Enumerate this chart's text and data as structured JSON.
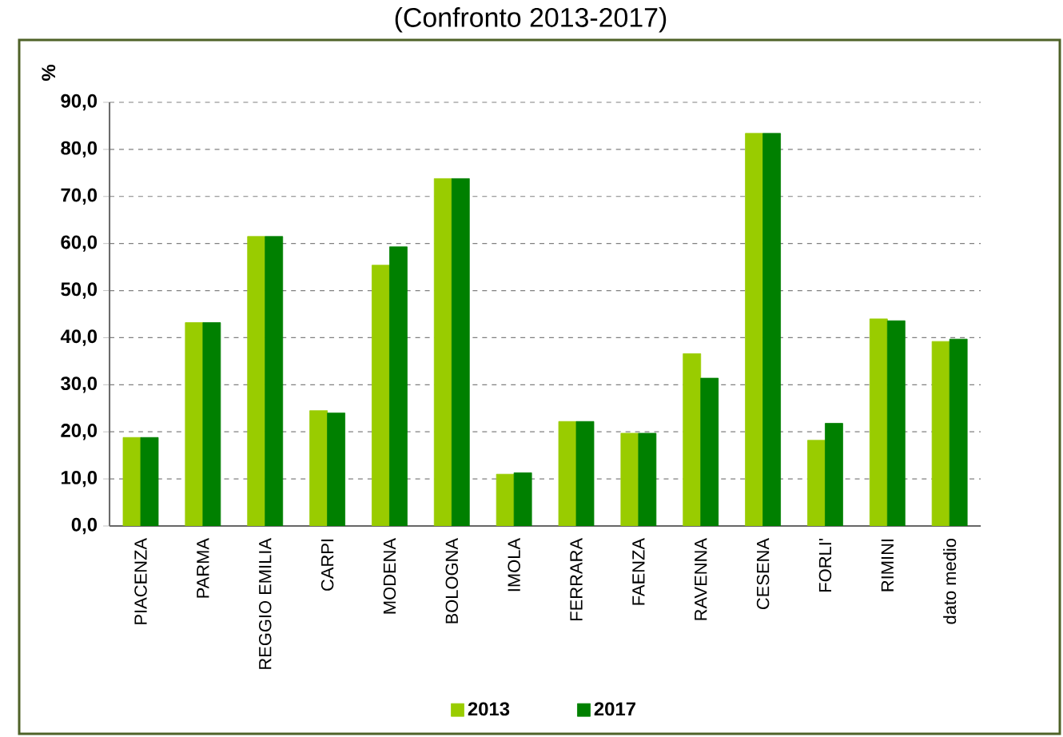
{
  "chart_data": {
    "type": "bar",
    "title": "(Confronto 2013-2017)",
    "ylabel": "%",
    "categories": [
      "PIACENZA",
      "PARMA",
      "REGGIO EMILIA",
      "CARPI",
      "MODENA",
      "BOLOGNA",
      "IMOLA",
      "FERRARA",
      "FAENZA",
      "RAVENNA",
      "CESENA",
      "FORLI'",
      "RIMINI",
      "dato medio"
    ],
    "series": [
      {
        "name": "2013",
        "color": "#99cc00",
        "values": [
          18.8,
          43.2,
          61.5,
          24.5,
          55.4,
          73.8,
          11.0,
          22.2,
          19.7,
          36.6,
          83.4,
          18.2,
          44.0,
          39.2
        ]
      },
      {
        "name": "2017",
        "color": "#008000",
        "values": [
          18.8,
          43.2,
          61.5,
          24.0,
          59.3,
          73.8,
          11.3,
          22.2,
          19.7,
          31.4,
          83.4,
          21.8,
          43.6,
          39.7
        ]
      }
    ],
    "ylim": [
      0,
      90
    ],
    "yticks": [
      {
        "value": 0,
        "label": "0,0"
      },
      {
        "value": 10,
        "label": "10,0"
      },
      {
        "value": 20,
        "label": "20,0"
      },
      {
        "value": 30,
        "label": "30,0"
      },
      {
        "value": 40,
        "label": "40,0"
      },
      {
        "value": 50,
        "label": "50,0"
      },
      {
        "value": 60,
        "label": "60,0"
      },
      {
        "value": 70,
        "label": "70,0"
      },
      {
        "value": 80,
        "label": "80,0"
      },
      {
        "value": 90,
        "label": "90,0"
      }
    ],
    "grid": "y",
    "legend": "bottom"
  }
}
